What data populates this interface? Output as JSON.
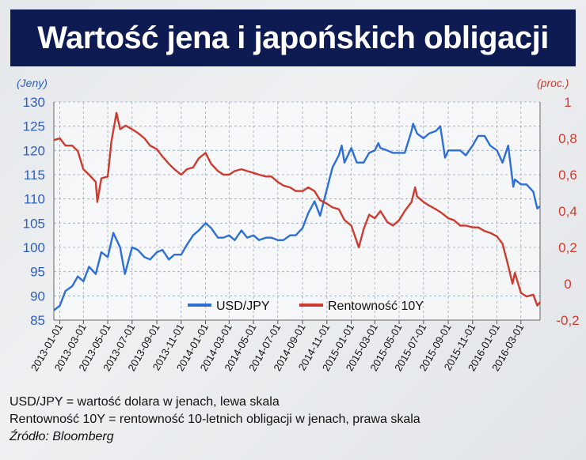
{
  "title": "Wartość jena i japońskich obligacji",
  "unit_left": "(Jeny)",
  "unit_right": "(proc.)",
  "notes": {
    "line1": "USD/JPY = wartość dolara w jenach, lewa skala",
    "line2": "Rentowność 10Y = rentowność 10-letnich obligacji w jenach, prawa skala",
    "source": "Źródło: Bloomberg"
  },
  "colors": {
    "usd_jpy": "#2e6fd6",
    "yield": "#cc3b30",
    "left_axis": "#2b5fc4",
    "right_axis": "#d13a2e",
    "title_bg": "#0d1b52"
  },
  "chart_data": {
    "type": "line",
    "title": "Wartość jena i japońskich obligacji",
    "ylabel_left": "(Jeny)",
    "ylabel_right": "(proc.)",
    "ylim_left": [
      85,
      130
    ],
    "ylim_right": [
      -0.2,
      1.0
    ],
    "yticks_left": [
      "130",
      "125",
      "120",
      "115",
      "110",
      "105",
      "100",
      "95",
      "90",
      "85"
    ],
    "yticks_right": [
      "1",
      "0,8",
      "0,6",
      "0,4",
      "0,2",
      "0",
      "-0,2"
    ],
    "xlim": [
      "2012-12-17",
      "2016-04-18"
    ],
    "xticks": [
      "2013-01-01",
      "2013-03-01",
      "2013-05-01",
      "2013-07-01",
      "2013-09-01",
      "2013-11-01",
      "2014-01-01",
      "2014-03-01",
      "2014-05-01",
      "2014-07-01",
      "2014-09-01",
      "2014-11-01",
      "2015-01-01",
      "2015-03-01",
      "2015-05-01",
      "2015-07-01",
      "2015-09-01",
      "2015-11-01",
      "2016-01-01",
      "2016-03-01"
    ],
    "legend_position": "bottom-center",
    "grid": true,
    "series": [
      {
        "name": "USD/JPY",
        "axis": "left",
        "points": [
          [
            "2012-12-17",
            87.0
          ],
          [
            "2013-01-01",
            88.0
          ],
          [
            "2013-01-15",
            91.0
          ],
          [
            "2013-02-01",
            92.0
          ],
          [
            "2013-02-15",
            94.0
          ],
          [
            "2013-03-01",
            93.0
          ],
          [
            "2013-03-15",
            96.0
          ],
          [
            "2013-04-01",
            94.5
          ],
          [
            "2013-04-15",
            99.0
          ],
          [
            "2013-05-01",
            98.0
          ],
          [
            "2013-05-15",
            103.0
          ],
          [
            "2013-06-01",
            100.0
          ],
          [
            "2013-06-13",
            94.5
          ],
          [
            "2013-07-01",
            100.0
          ],
          [
            "2013-07-15",
            99.5
          ],
          [
            "2013-08-01",
            98.0
          ],
          [
            "2013-08-15",
            97.5
          ],
          [
            "2013-09-01",
            99.0
          ],
          [
            "2013-09-15",
            99.5
          ],
          [
            "2013-10-01",
            97.5
          ],
          [
            "2013-10-15",
            98.5
          ],
          [
            "2013-11-01",
            98.5
          ],
          [
            "2013-11-15",
            100.5
          ],
          [
            "2013-12-01",
            102.5
          ],
          [
            "2013-12-15",
            103.5
          ],
          [
            "2014-01-01",
            105.0
          ],
          [
            "2014-01-15",
            104.0
          ],
          [
            "2014-02-01",
            102.0
          ],
          [
            "2014-02-15",
            102.0
          ],
          [
            "2014-03-01",
            102.5
          ],
          [
            "2014-03-15",
            101.5
          ],
          [
            "2014-04-01",
            103.5
          ],
          [
            "2014-04-15",
            102.0
          ],
          [
            "2014-05-01",
            102.5
          ],
          [
            "2014-05-15",
            101.5
          ],
          [
            "2014-06-01",
            102.0
          ],
          [
            "2014-06-15",
            102.0
          ],
          [
            "2014-07-01",
            101.5
          ],
          [
            "2014-07-15",
            101.5
          ],
          [
            "2014-08-01",
            102.5
          ],
          [
            "2014-08-15",
            102.5
          ],
          [
            "2014-09-01",
            104.0
          ],
          [
            "2014-09-15",
            107.0
          ],
          [
            "2014-10-01",
            109.5
          ],
          [
            "2014-10-15",
            106.5
          ],
          [
            "2014-11-01",
            112.0
          ],
          [
            "2014-11-15",
            116.5
          ],
          [
            "2014-12-01",
            119.0
          ],
          [
            "2014-12-08",
            121.0
          ],
          [
            "2014-12-15",
            117.5
          ],
          [
            "2015-01-01",
            120.5
          ],
          [
            "2015-01-15",
            117.5
          ],
          [
            "2015-02-01",
            117.5
          ],
          [
            "2015-02-15",
            119.5
          ],
          [
            "2015-03-01",
            120.0
          ],
          [
            "2015-03-10",
            121.5
          ],
          [
            "2015-03-15",
            120.5
          ],
          [
            "2015-04-01",
            120.0
          ],
          [
            "2015-04-15",
            119.5
          ],
          [
            "2015-05-01",
            119.5
          ],
          [
            "2015-05-15",
            119.5
          ],
          [
            "2015-06-01",
            124.0
          ],
          [
            "2015-06-05",
            125.5
          ],
          [
            "2015-06-15",
            123.5
          ],
          [
            "2015-07-01",
            122.5
          ],
          [
            "2015-07-15",
            123.5
          ],
          [
            "2015-08-01",
            124.0
          ],
          [
            "2015-08-12",
            125.0
          ],
          [
            "2015-08-24",
            118.5
          ],
          [
            "2015-09-01",
            120.0
          ],
          [
            "2015-09-15",
            120.0
          ],
          [
            "2015-10-01",
            120.0
          ],
          [
            "2015-10-15",
            119.0
          ],
          [
            "2015-11-01",
            121.0
          ],
          [
            "2015-11-15",
            123.0
          ],
          [
            "2015-12-01",
            123.0
          ],
          [
            "2015-12-15",
            121.0
          ],
          [
            "2016-01-01",
            120.0
          ],
          [
            "2016-01-15",
            117.5
          ],
          [
            "2016-01-29",
            121.0
          ],
          [
            "2016-02-11",
            112.5
          ],
          [
            "2016-02-15",
            114.0
          ],
          [
            "2016-03-01",
            113.0
          ],
          [
            "2016-03-15",
            113.0
          ],
          [
            "2016-04-01",
            111.5
          ],
          [
            "2016-04-11",
            108.0
          ],
          [
            "2016-04-18",
            108.5
          ]
        ]
      },
      {
        "name": "Rentowność 10Y",
        "axis": "right",
        "points": [
          [
            "2012-12-17",
            0.79
          ],
          [
            "2013-01-01",
            0.8
          ],
          [
            "2013-01-15",
            0.76
          ],
          [
            "2013-02-01",
            0.76
          ],
          [
            "2013-02-15",
            0.73
          ],
          [
            "2013-03-01",
            0.63
          ],
          [
            "2013-03-15",
            0.6
          ],
          [
            "2013-04-01",
            0.56
          ],
          [
            "2013-04-05",
            0.45
          ],
          [
            "2013-04-15",
            0.58
          ],
          [
            "2013-05-01",
            0.59
          ],
          [
            "2013-05-10",
            0.78
          ],
          [
            "2013-05-23",
            0.94
          ],
          [
            "2013-06-01",
            0.85
          ],
          [
            "2013-06-15",
            0.87
          ],
          [
            "2013-07-01",
            0.85
          ],
          [
            "2013-07-15",
            0.83
          ],
          [
            "2013-08-01",
            0.8
          ],
          [
            "2013-08-15",
            0.76
          ],
          [
            "2013-09-01",
            0.74
          ],
          [
            "2013-09-15",
            0.7
          ],
          [
            "2013-10-01",
            0.66
          ],
          [
            "2013-10-15",
            0.63
          ],
          [
            "2013-11-01",
            0.6
          ],
          [
            "2013-11-15",
            0.63
          ],
          [
            "2013-12-01",
            0.64
          ],
          [
            "2013-12-15",
            0.69
          ],
          [
            "2014-01-01",
            0.72
          ],
          [
            "2014-01-15",
            0.66
          ],
          [
            "2014-02-01",
            0.62
          ],
          [
            "2014-02-15",
            0.6
          ],
          [
            "2014-03-01",
            0.6
          ],
          [
            "2014-03-15",
            0.62
          ],
          [
            "2014-04-01",
            0.63
          ],
          [
            "2014-04-15",
            0.62
          ],
          [
            "2014-05-01",
            0.61
          ],
          [
            "2014-05-15",
            0.6
          ],
          [
            "2014-06-01",
            0.59
          ],
          [
            "2014-06-15",
            0.59
          ],
          [
            "2014-07-01",
            0.56
          ],
          [
            "2014-07-15",
            0.54
          ],
          [
            "2014-08-01",
            0.53
          ],
          [
            "2014-08-15",
            0.51
          ],
          [
            "2014-09-01",
            0.51
          ],
          [
            "2014-09-15",
            0.53
          ],
          [
            "2014-10-01",
            0.51
          ],
          [
            "2014-10-15",
            0.46
          ],
          [
            "2014-11-01",
            0.44
          ],
          [
            "2014-11-15",
            0.42
          ],
          [
            "2014-12-01",
            0.41
          ],
          [
            "2014-12-15",
            0.35
          ],
          [
            "2015-01-01",
            0.32
          ],
          [
            "2015-01-20",
            0.2
          ],
          [
            "2015-02-01",
            0.3
          ],
          [
            "2015-02-15",
            0.38
          ],
          [
            "2015-03-01",
            0.36
          ],
          [
            "2015-03-15",
            0.4
          ],
          [
            "2015-04-01",
            0.34
          ],
          [
            "2015-04-15",
            0.32
          ],
          [
            "2015-05-01",
            0.35
          ],
          [
            "2015-05-15",
            0.4
          ],
          [
            "2015-06-01",
            0.45
          ],
          [
            "2015-06-10",
            0.53
          ],
          [
            "2015-06-15",
            0.48
          ],
          [
            "2015-07-01",
            0.45
          ],
          [
            "2015-07-15",
            0.43
          ],
          [
            "2015-08-01",
            0.41
          ],
          [
            "2015-08-15",
            0.39
          ],
          [
            "2015-09-01",
            0.36
          ],
          [
            "2015-09-15",
            0.35
          ],
          [
            "2015-10-01",
            0.32
          ],
          [
            "2015-10-15",
            0.32
          ],
          [
            "2015-11-01",
            0.31
          ],
          [
            "2015-11-15",
            0.31
          ],
          [
            "2015-12-01",
            0.29
          ],
          [
            "2015-12-15",
            0.28
          ],
          [
            "2016-01-01",
            0.26
          ],
          [
            "2016-01-15",
            0.22
          ],
          [
            "2016-01-29",
            0.1
          ],
          [
            "2016-02-09",
            0.0
          ],
          [
            "2016-02-15",
            0.06
          ],
          [
            "2016-03-01",
            -0.05
          ],
          [
            "2016-03-15",
            -0.07
          ],
          [
            "2016-04-01",
            -0.06
          ],
          [
            "2016-04-11",
            -0.12
          ],
          [
            "2016-04-18",
            -0.1
          ]
        ]
      }
    ]
  }
}
